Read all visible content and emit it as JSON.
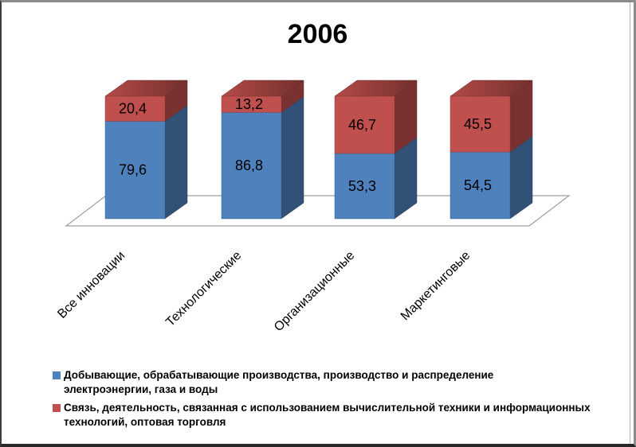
{
  "chart_data": {
    "type": "bar",
    "style": "3d-stacked-column-percent",
    "title": "2006",
    "categories": [
      "Все инновации",
      "Технологические",
      "Организационные",
      "Маркетинговые"
    ],
    "series": [
      {
        "name": "Добывающие, обрабатывающие производства, производство и распределение электроэнергии, газа и воды",
        "color": "#4f81bd",
        "values": [
          79.6,
          86.8,
          53.3,
          54.5
        ]
      },
      {
        "name": "Связь, деятельность, связанная с использованием вычислительной техники и информационных технологий, оптовая торговля",
        "color": "#c0504d",
        "values": [
          20.4,
          13.2,
          46.7,
          45.5
        ]
      }
    ],
    "value_label_decimal_separator": ",",
    "ylim": [
      0,
      100
    ],
    "grid": false,
    "legend_position": "bottom",
    "axis_line_color": "#9d9d9d"
  },
  "legend": {
    "items": [
      {
        "marker_color": "#4f81bd",
        "lines": [
          "Добывающие, обрабатывающие производства, производство и распределение",
          "электроэнергии, газа и воды"
        ]
      },
      {
        "marker_color": "#c0504d",
        "lines": [
          "Связь, деятельность, связанная с использованием вычислительной техники и информационных",
          "технологий, оптовая торговля"
        ]
      }
    ]
  }
}
